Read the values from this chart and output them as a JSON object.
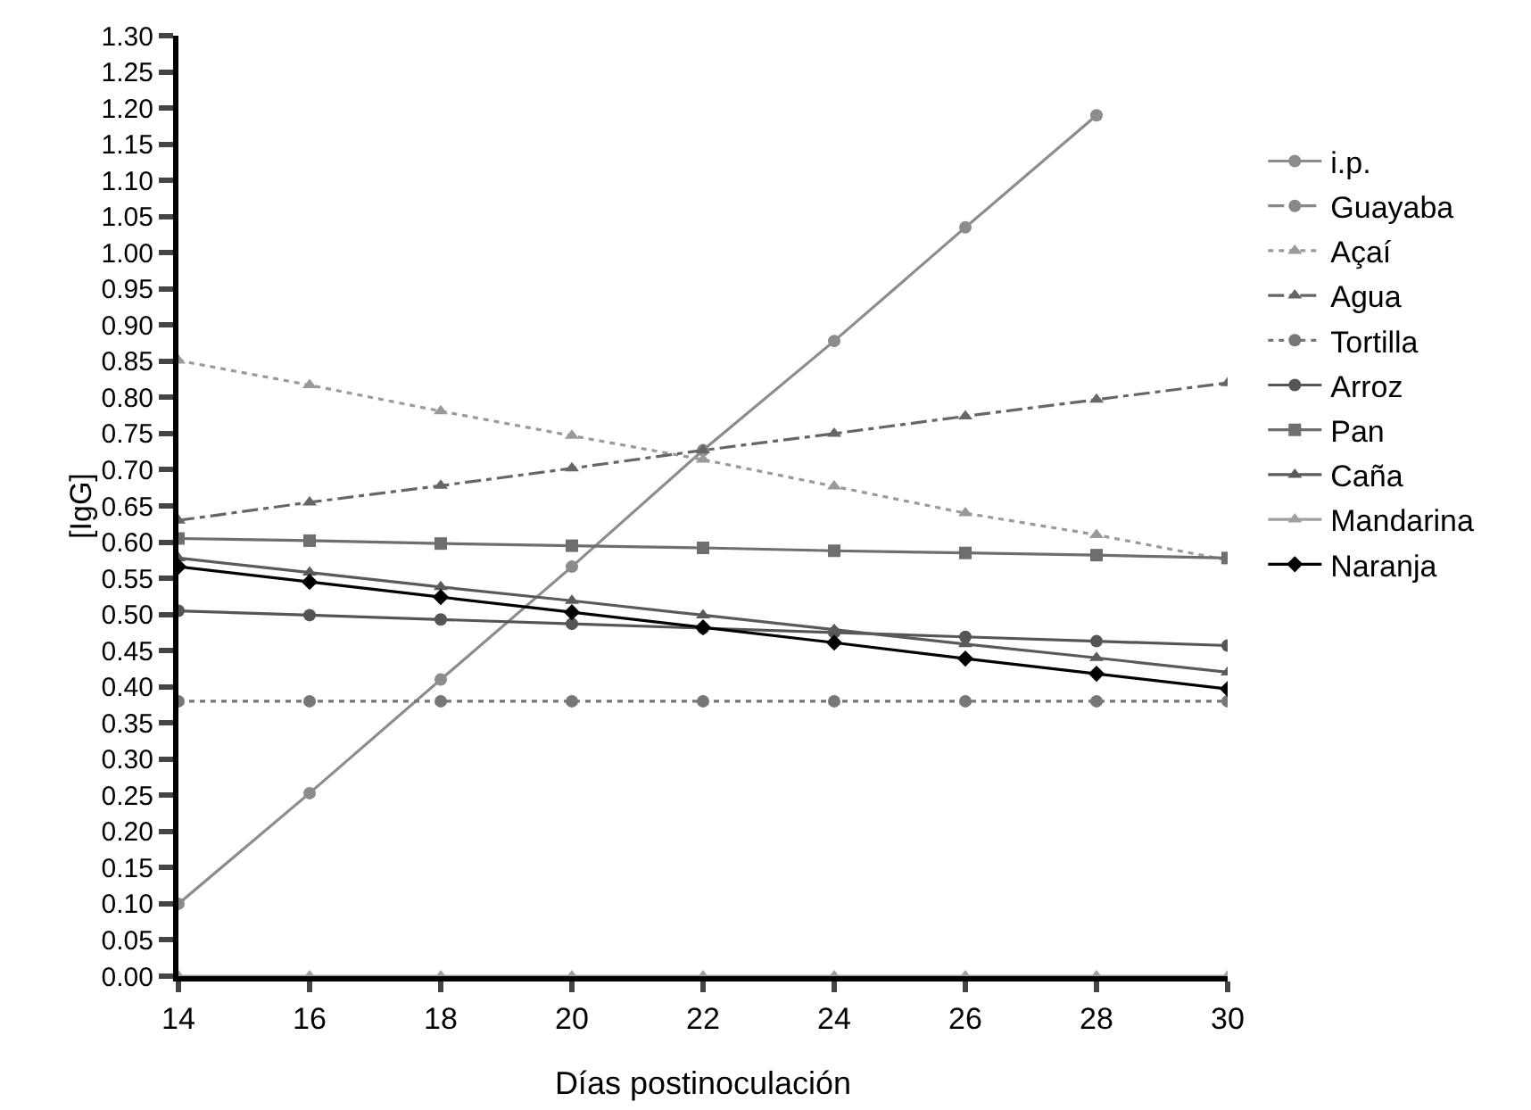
{
  "chart_data": {
    "type": "line",
    "xlabel": "Días postinoculación",
    "ylabel": "[IgG]",
    "x": [
      14,
      16,
      18,
      20,
      22,
      24,
      26,
      28,
      30
    ],
    "series": [
      {
        "name": "i.p.",
        "color": "#8c8c8c",
        "marker": "circle",
        "line_style": "solid",
        "values": [
          0.1,
          0.253,
          0.41,
          0.566,
          0.727,
          0.878,
          1.035,
          1.19,
          null
        ]
      },
      {
        "name": "Guayaba",
        "color": "#888888",
        "marker": "circle",
        "line_style": "dashed",
        "values": [
          null,
          null,
          null,
          null,
          null,
          null,
          null,
          null,
          null
        ]
      },
      {
        "name": "Açaí",
        "color": "#9a9a9a",
        "marker": "triangle",
        "line_style": "dotted",
        "values": [
          0.851,
          0.817,
          0.781,
          0.747,
          0.714,
          0.677,
          0.64,
          0.61,
          0.575
        ]
      },
      {
        "name": "Agua",
        "color": "#666666",
        "marker": "triangle",
        "line_style": "dashed",
        "values": [
          0.63,
          0.655,
          0.678,
          0.702,
          0.727,
          0.75,
          0.774,
          0.797,
          0.82
        ]
      },
      {
        "name": "Tortilla",
        "color": "#777777",
        "marker": "circle",
        "line_style": "dotted",
        "values": [
          0.38,
          0.38,
          0.38,
          0.38,
          0.38,
          0.38,
          0.38,
          0.38,
          0.38
        ]
      },
      {
        "name": "Arroz",
        "color": "#555555",
        "marker": "circle",
        "line_style": "solid",
        "values": [
          0.505,
          0.499,
          0.493,
          0.487,
          0.481,
          0.475,
          0.469,
          0.463,
          0.457
        ]
      },
      {
        "name": "Pan",
        "color": "#6e6e6e",
        "marker": "square",
        "line_style": "solid",
        "values": [
          0.605,
          0.602,
          0.598,
          0.595,
          0.592,
          0.588,
          0.585,
          0.582,
          0.578
        ]
      },
      {
        "name": "Caña",
        "color": "#5a5a5a",
        "marker": "triangle",
        "line_style": "solid",
        "values": [
          0.578,
          0.558,
          0.538,
          0.519,
          0.499,
          0.479,
          0.459,
          0.44,
          0.42
        ]
      },
      {
        "name": "Mandarina",
        "color": "#a0a0a0",
        "marker": "triangle",
        "line_style": "solid",
        "values": [
          0,
          0,
          0,
          0,
          0,
          0,
          0,
          0,
          0
        ]
      },
      {
        "name": "Naranja",
        "color": "#000000",
        "marker": "diamond",
        "line_style": "solid",
        "values": [
          0.566,
          0.545,
          0.524,
          0.503,
          0.482,
          0.461,
          0.439,
          0.418,
          0.397
        ]
      }
    ],
    "xlim": [
      14,
      30
    ],
    "xticks": [
      14,
      16,
      18,
      20,
      22,
      24,
      26,
      28,
      30
    ],
    "ylim": [
      0,
      1.3
    ],
    "yticks": [
      {
        "value": 0,
        "label": "0.00"
      },
      {
        "value": 0.05,
        "label": "0.05"
      },
      {
        "value": 0.1,
        "label": "0.10"
      },
      {
        "value": 0.15,
        "label": "0.15"
      },
      {
        "value": 0.2,
        "label": "0.20"
      },
      {
        "value": 0.25,
        "label": "0.25"
      },
      {
        "value": 0.3,
        "label": "0.30"
      },
      {
        "value": 0.35,
        "label": "0.35"
      },
      {
        "value": 0.4,
        "label": "0.40"
      },
      {
        "value": 0.45,
        "label": "0.45"
      },
      {
        "value": 0.5,
        "label": "0.50"
      },
      {
        "value": 0.55,
        "label": "0.55"
      },
      {
        "value": 0.6,
        "label": "0.60"
      },
      {
        "value": 0.65,
        "label": "0.65"
      },
      {
        "value": 0.7,
        "label": "0.70"
      },
      {
        "value": 0.75,
        "label": "0.75"
      },
      {
        "value": 0.8,
        "label": "0.80"
      },
      {
        "value": 0.85,
        "label": "0.85"
      },
      {
        "value": 0.9,
        "label": "0.90"
      },
      {
        "value": 0.95,
        "label": "0.95"
      },
      {
        "value": 1,
        "label": "1.00"
      },
      {
        "value": 1.05,
        "label": "1.05"
      },
      {
        "value": 1.1,
        "label": "1.10"
      },
      {
        "value": 1.15,
        "label": "1.15"
      },
      {
        "value": 1.2,
        "label": "1.20"
      },
      {
        "value": 1.25,
        "label": "1.25"
      },
      {
        "value": 1.3,
        "label": "1.30"
      }
    ],
    "grid": false,
    "legend": "right"
  }
}
